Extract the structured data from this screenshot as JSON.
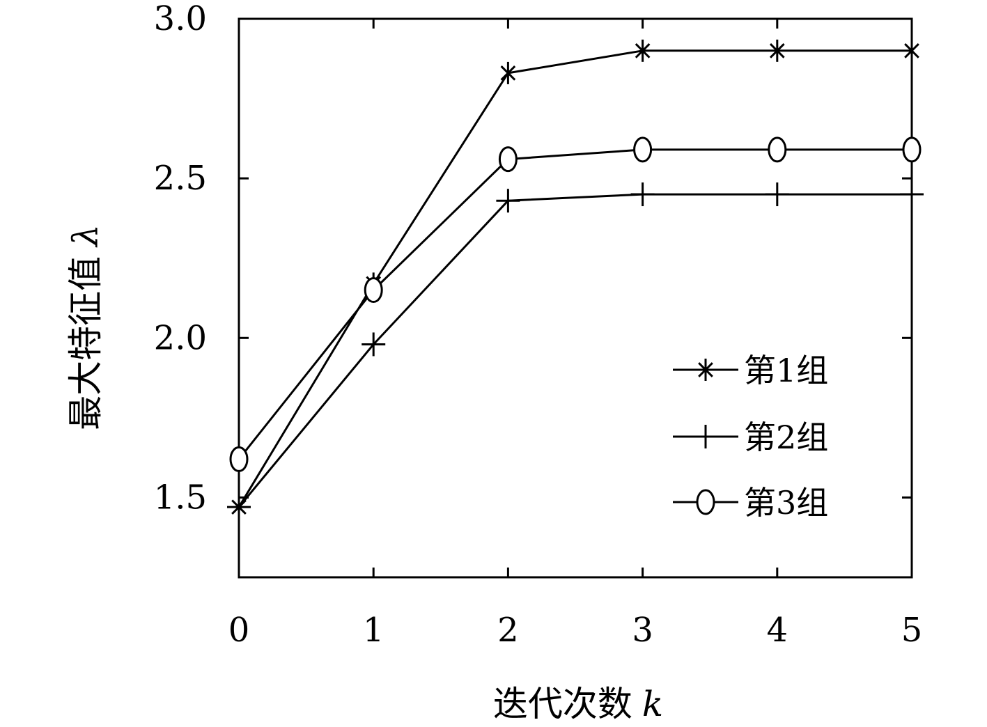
{
  "chart_data": {
    "type": "line",
    "title": "",
    "xlabel": "迭代次数",
    "xlabel_var": "k",
    "ylabel": "最大特征值",
    "ylabel_var": "λ",
    "x": [
      0,
      1,
      2,
      3,
      4,
      5
    ],
    "xlim": [
      0,
      5
    ],
    "ylim": [
      1.25,
      3.0
    ],
    "xticks": [
      0,
      1,
      2,
      3,
      4,
      5
    ],
    "yticks": [
      1.5,
      2.0,
      2.5,
      3.0
    ],
    "xtick_labels": [
      "0",
      "1",
      "2",
      "3",
      "4",
      "5"
    ],
    "ytick_labels": [
      "1.5",
      "2.0",
      "2.5",
      "3.0"
    ],
    "grid": false,
    "legend_position": "lower-right",
    "series": [
      {
        "name": "第1组",
        "marker": "asterisk",
        "values": [
          1.47,
          2.17,
          2.83,
          2.9,
          2.9,
          2.9
        ]
      },
      {
        "name": "第2组",
        "marker": "plus",
        "values": [
          1.47,
          1.98,
          2.43,
          2.45,
          2.45,
          2.45
        ]
      },
      {
        "name": "第3组",
        "marker": "circle",
        "values": [
          1.62,
          2.15,
          2.56,
          2.59,
          2.59,
          2.59
        ]
      }
    ],
    "colors": {
      "line": "#000000",
      "background": "#ffffff"
    }
  }
}
